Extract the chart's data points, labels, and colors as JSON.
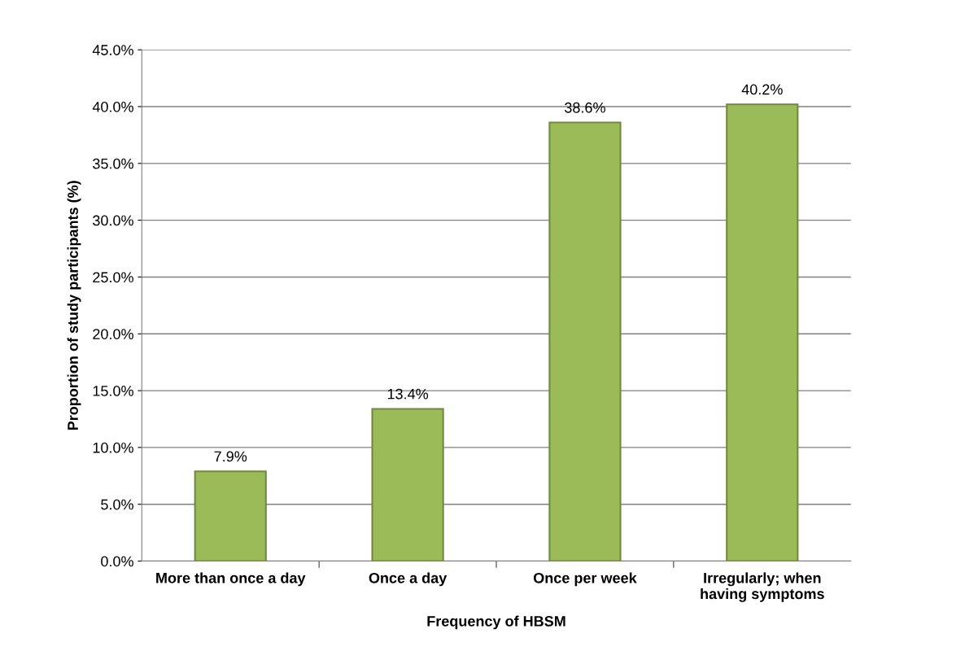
{
  "chart_data": {
    "type": "bar",
    "xlabel": "Frequency of HBSM",
    "ylabel": "Proportion of study participants (%)",
    "categories": [
      "More than once a day",
      "Once a day",
      "Once per week",
      "Irregularly; when\nhaving symptoms"
    ],
    "values": [
      7.9,
      13.4,
      38.6,
      40.2
    ],
    "value_labels": [
      "7.9%",
      "13.4%",
      "38.6%",
      "40.2%"
    ],
    "color": "#9bbb59",
    "ylim": [
      0,
      45
    ],
    "yticks": [
      {
        "value": 0,
        "label": "0.0%"
      },
      {
        "value": 5,
        "label": "5.0%"
      },
      {
        "value": 10,
        "label": "10.0%"
      },
      {
        "value": 15,
        "label": "15.0%"
      },
      {
        "value": 20,
        "label": "20.0%"
      },
      {
        "value": 25,
        "label": "25.0%"
      },
      {
        "value": 30,
        "label": "30.0%"
      },
      {
        "value": 35,
        "label": "35.0%"
      },
      {
        "value": 40,
        "label": "40.0%"
      },
      {
        "value": 45,
        "label": "45.0%"
      }
    ],
    "grid": "y",
    "legend": false
  }
}
